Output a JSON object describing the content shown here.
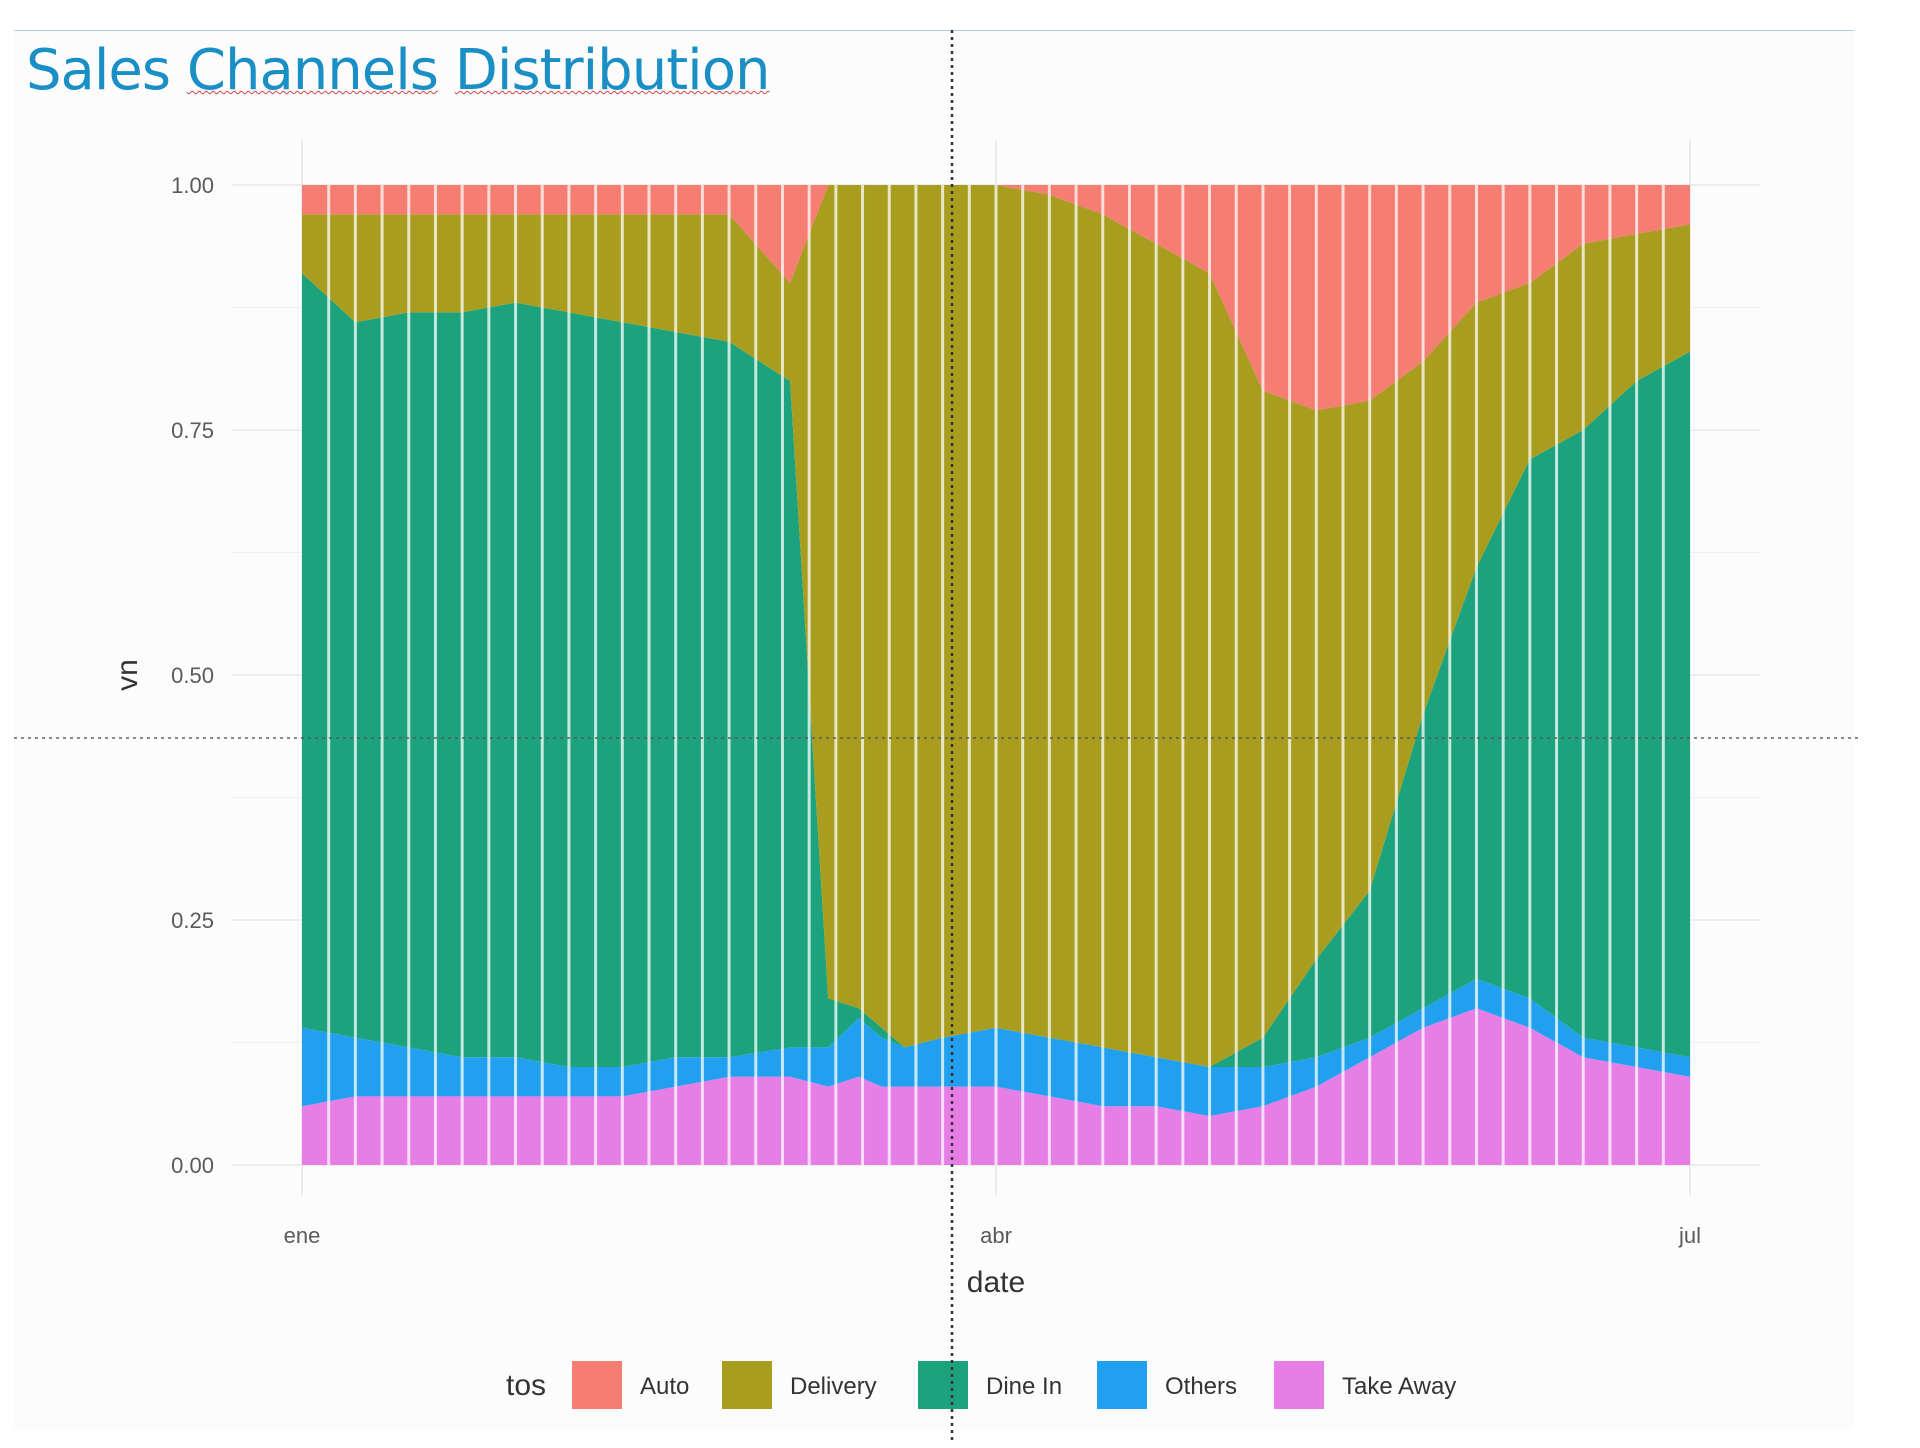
{
  "slide": {
    "title_words": [
      "Sales",
      "Channels",
      "Distribution"
    ]
  },
  "chart_data": {
    "type": "area",
    "stacked": "fill",
    "title": "",
    "xlabel": "date",
    "ylabel": "vn",
    "x_ticks": [
      "ene",
      "abr",
      "jul"
    ],
    "y_ticks": [
      "0.00",
      "0.25",
      "0.50",
      "0.75",
      "1.00"
    ],
    "ylim": [
      0,
      1
    ],
    "grid": true,
    "legend": {
      "title": "tos",
      "position": "bottom"
    },
    "x": [
      "01-01",
      "01-08",
      "01-15",
      "01-22",
      "01-29",
      "02-05",
      "02-12",
      "02-19",
      "02-26",
      "03-05",
      "03-10",
      "03-14",
      "03-17",
      "03-20",
      "03-25",
      "04-01",
      "04-08",
      "04-15",
      "04-22",
      "04-29",
      "05-06",
      "05-13",
      "05-20",
      "05-27",
      "06-03",
      "06-10",
      "06-17",
      "06-24",
      "07-01"
    ],
    "series": [
      {
        "name": "Take Away",
        "color": "#e67ee6",
        "values": [
          0.06,
          0.07,
          0.07,
          0.07,
          0.07,
          0.07,
          0.07,
          0.08,
          0.09,
          0.09,
          0.08,
          0.09,
          0.08,
          0.08,
          0.08,
          0.08,
          0.07,
          0.06,
          0.06,
          0.05,
          0.06,
          0.08,
          0.11,
          0.14,
          0.16,
          0.14,
          0.11,
          0.1,
          0.09
        ]
      },
      {
        "name": "Others",
        "color": "#22a0f0",
        "values": [
          0.08,
          0.06,
          0.05,
          0.04,
          0.04,
          0.03,
          0.03,
          0.03,
          0.02,
          0.03,
          0.04,
          0.06,
          0.05,
          0.04,
          0.05,
          0.06,
          0.06,
          0.06,
          0.05,
          0.05,
          0.04,
          0.03,
          0.02,
          0.02,
          0.03,
          0.03,
          0.02,
          0.02,
          0.02
        ]
      },
      {
        "name": "Dine In",
        "color": "#1ca37e",
        "values": [
          0.77,
          0.73,
          0.75,
          0.76,
          0.77,
          0.77,
          0.76,
          0.74,
          0.73,
          0.68,
          0.05,
          0.01,
          0.01,
          0.0,
          0.0,
          0.0,
          0.0,
          0.0,
          0.0,
          0.0,
          0.03,
          0.1,
          0.15,
          0.3,
          0.42,
          0.55,
          0.62,
          0.68,
          0.72
        ]
      },
      {
        "name": "Delivery",
        "color": "#a89d1e",
        "values": [
          0.06,
          0.11,
          0.1,
          0.1,
          0.09,
          0.1,
          0.11,
          0.12,
          0.13,
          0.1,
          0.83,
          0.84,
          0.86,
          0.88,
          0.87,
          0.86,
          0.86,
          0.85,
          0.83,
          0.81,
          0.66,
          0.56,
          0.5,
          0.36,
          0.27,
          0.18,
          0.19,
          0.15,
          0.13
        ]
      },
      {
        "name": "Auto",
        "color": "#f57d72",
        "values": [
          0.03,
          0.03,
          0.03,
          0.03,
          0.03,
          0.03,
          0.03,
          0.03,
          0.03,
          0.1,
          0.0,
          0.0,
          0.0,
          0.0,
          0.0,
          0.0,
          0.01,
          0.03,
          0.06,
          0.09,
          0.21,
          0.23,
          0.22,
          0.18,
          0.12,
          0.1,
          0.06,
          0.05,
          0.04
        ]
      }
    ]
  }
}
